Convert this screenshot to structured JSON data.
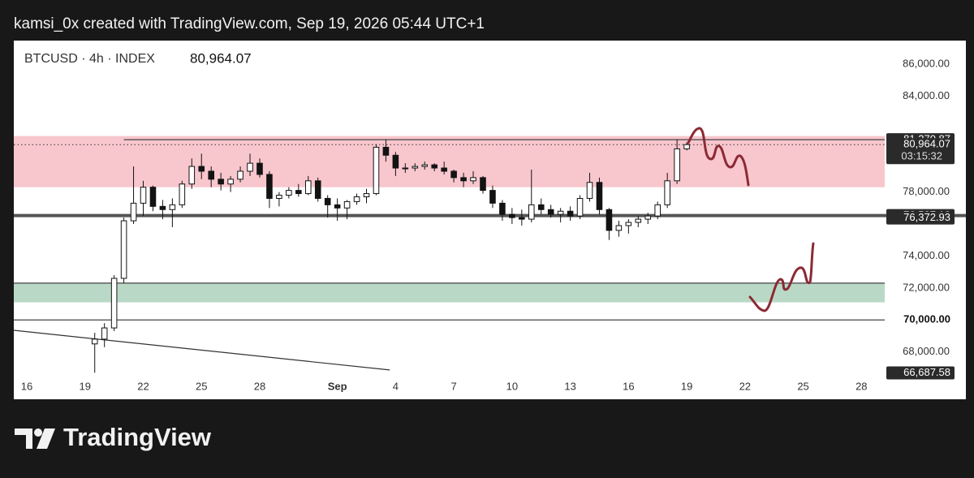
{
  "header": "kamsi_0x created with TradingView.com, Sep 19, 2026 05:44 UTC+1",
  "brand": "TradingView",
  "chart_data": {
    "type": "candlestick",
    "symbol": "BTCUSD · 4h · INDEX",
    "last": {
      "value": 80964.07,
      "label": "80,964.07"
    },
    "countdown": "03:15:32",
    "color": "#131313",
    "grid": false,
    "xlim": [
      -0.67,
      44.2
    ],
    "ylim": [
      66560,
      87470
    ],
    "xticks": [
      {
        "value": 0,
        "label": "16"
      },
      {
        "value": 3,
        "label": "19"
      },
      {
        "value": 6,
        "label": "22"
      },
      {
        "value": 9,
        "label": "25"
      },
      {
        "value": 12,
        "label": "28"
      },
      {
        "value": 16,
        "label": "Sep"
      },
      {
        "value": 19,
        "label": "4"
      },
      {
        "value": 22,
        "label": "7"
      },
      {
        "value": 25,
        "label": "10"
      },
      {
        "value": 28,
        "label": "13"
      },
      {
        "value": 31,
        "label": "16"
      },
      {
        "value": 34,
        "label": "19"
      },
      {
        "value": 37,
        "label": "22"
      },
      {
        "value": 40,
        "label": "25"
      },
      {
        "value": 43,
        "label": "28"
      }
    ],
    "yticks": [
      {
        "value": 68000,
        "label": "68,000.00"
      },
      {
        "value": 72000,
        "label": "72,000.00"
      },
      {
        "value": 74000,
        "label": "74,000.00"
      },
      {
        "value": 78000,
        "label": "78,000.00"
      },
      {
        "value": 84000,
        "label": "84,000.00"
      },
      {
        "value": 86000,
        "label": "86,000.00"
      }
    ],
    "zones": [
      {
        "from": 78300,
        "to": 81500,
        "color": "#f8c6cd"
      },
      {
        "from": 71100,
        "to": 72300,
        "color": "#b9d9c6"
      }
    ],
    "levels": [
      {
        "value": 81270.87,
        "x0": 5
      },
      {
        "value": 76527.19
      },
      {
        "value": 72300
      },
      {
        "value": 70000
      }
    ],
    "trendline": {
      "x": [
        -0.67,
        18.7
      ],
      "y": [
        69350,
        66870
      ]
    },
    "price_labels": [
      {
        "value": 81270.87,
        "label": "81,270.87",
        "style": "dark"
      },
      {
        "value": 76527.19,
        "label": "76,527.19",
        "style": "dark"
      },
      {
        "value": 76372.93,
        "label": "76,372.93",
        "style": "dark"
      },
      {
        "value": 70000,
        "label": "70,000.00",
        "style": "light"
      },
      {
        "value": 66687.58,
        "label": "66,687.58",
        "style": "dark"
      }
    ],
    "x": [
      3.5,
      4,
      4.5,
      5,
      5.5,
      6,
      6.5,
      7,
      7.5,
      8,
      8.5,
      9,
      9.5,
      10,
      10.5,
      11,
      11.5,
      12,
      12.5,
      13,
      13.5,
      14,
      14.5,
      15,
      15.5,
      16,
      16.5,
      17,
      17.5,
      18,
      18.5,
      19,
      19.5,
      20,
      20.5,
      21,
      21.5,
      22,
      22.5,
      23,
      23.5,
      24,
      24.5,
      25,
      25.5,
      26,
      26.5,
      27,
      27.5,
      28,
      28.5,
      29,
      29.5,
      30,
      30.5,
      31,
      31.5,
      32,
      32.5,
      33,
      33.5,
      34
    ],
    "open": [
      68500,
      68800,
      69500,
      72600,
      76200,
      77300,
      78300,
      77100,
      76900,
      77200,
      78500,
      79600,
      79300,
      78800,
      78500,
      78800,
      79300,
      79800,
      79100,
      77600,
      77800,
      78100,
      77900,
      78700,
      77600,
      77200,
      77000,
      77400,
      77700,
      77900,
      80800,
      80300,
      79500,
      79500,
      79600,
      79700,
      79500,
      79300,
      78900,
      78700,
      78900,
      78100,
      77300,
      76600,
      76400,
      76300,
      77200,
      76900,
      76600,
      76800,
      76500,
      77600,
      78600,
      76900,
      75600,
      75900,
      76100,
      76300,
      76500,
      77200,
      78700,
      80700
    ],
    "high": [
      69200,
      69800,
      72800,
      76400,
      79600,
      78700,
      78400,
      77500,
      77600,
      78700,
      80100,
      80400,
      79600,
      79200,
      79000,
      79600,
      80400,
      80100,
      79300,
      78000,
      78300,
      78500,
      79000,
      78900,
      77800,
      77600,
      77500,
      77900,
      78200,
      81000,
      81300,
      80500,
      79800,
      79800,
      79900,
      79800,
      79900,
      79400,
      79200,
      79300,
      79000,
      78400,
      77500,
      77000,
      76900,
      79400,
      77600,
      77200,
      77000,
      77100,
      77800,
      79200,
      78900,
      77000,
      76200,
      76300,
      76500,
      76700,
      77400,
      79200,
      81300,
      81100
    ],
    "low": [
      66700,
      68300,
      69300,
      72300,
      76000,
      76500,
      76800,
      76300,
      75800,
      77000,
      78200,
      78800,
      78300,
      78100,
      78000,
      78600,
      79000,
      78900,
      77000,
      77100,
      77600,
      77700,
      77800,
      77400,
      76400,
      76200,
      76300,
      77200,
      77300,
      77800,
      79900,
      79000,
      79200,
      79300,
      79400,
      79300,
      79100,
      78600,
      78300,
      78500,
      77900,
      77000,
      76200,
      76000,
      75900,
      76100,
      76600,
      76400,
      76100,
      76200,
      76300,
      77400,
      76600,
      75000,
      75200,
      75400,
      75800,
      76000,
      76300,
      77000,
      78500,
      80600
    ],
    "close": [
      68800,
      69500,
      72600,
      76200,
      77300,
      78300,
      77100,
      76900,
      77200,
      78500,
      79600,
      79300,
      78800,
      78500,
      78800,
      79300,
      79800,
      79100,
      77600,
      77800,
      78100,
      77900,
      78700,
      77600,
      77200,
      77000,
      77400,
      77700,
      77900,
      80800,
      80300,
      79500,
      79500,
      79600,
      79700,
      79500,
      79300,
      78900,
      78700,
      78900,
      78100,
      77300,
      76600,
      76400,
      76300,
      77200,
      76900,
      76600,
      76800,
      76500,
      77600,
      78600,
      76900,
      75600,
      75900,
      76100,
      76300,
      76500,
      77200,
      78700,
      80700,
      80964.07
    ]
  }
}
